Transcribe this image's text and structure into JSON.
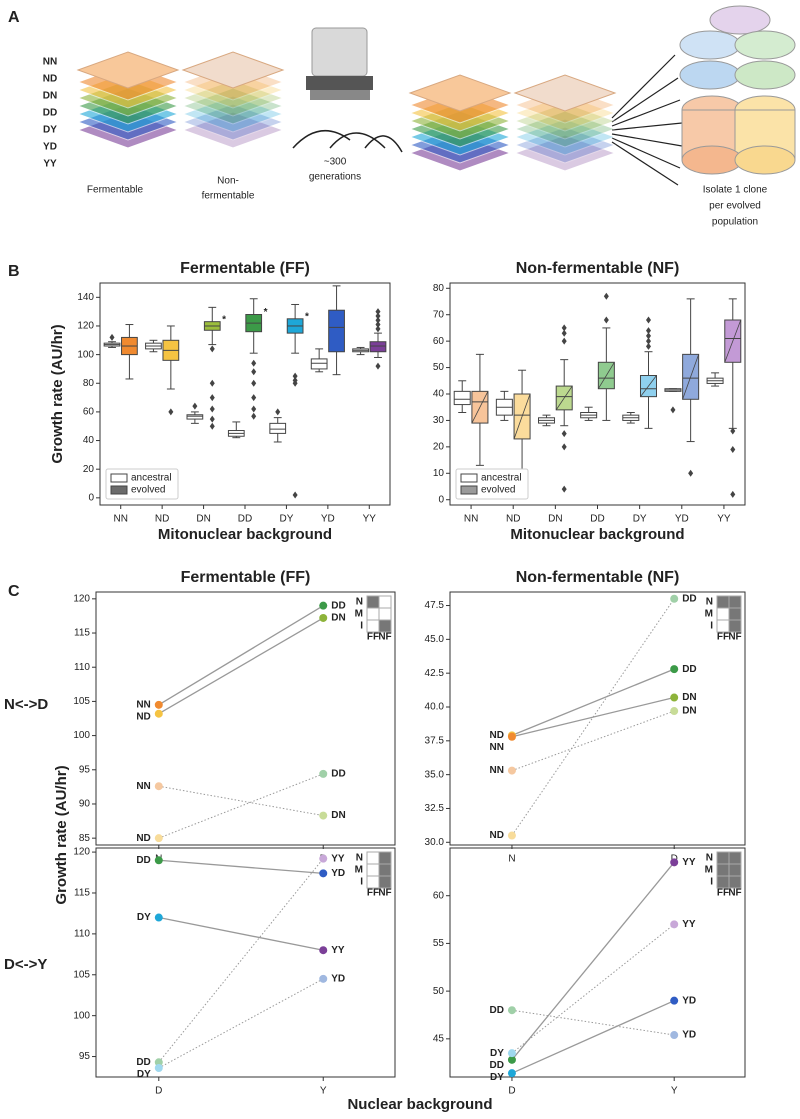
{
  "panel_labels": [
    "A",
    "B",
    "C"
  ],
  "panel_a": {
    "strains": [
      {
        "label": "NN",
        "color": "#f08a30"
      },
      {
        "label": "ND",
        "color": "#f5c342"
      },
      {
        "label": "DN",
        "color": "#8db33a"
      },
      {
        "label": "DD",
        "color": "#3c9a48"
      },
      {
        "label": "DY",
        "color": "#1ea7d8"
      },
      {
        "label": "YD",
        "color": "#2f5cc4"
      },
      {
        "label": "YY",
        "color": "#7b3f98"
      }
    ],
    "fermentable": "Fermentable",
    "non_fermentable": [
      "Non-",
      "fermentable"
    ],
    "generations": [
      "~300",
      "generations"
    ],
    "isolate": [
      "Isolate 1 clone",
      "per evolved",
      "population"
    ]
  },
  "panel_c": {
    "ylabel": "Growth rate (AU/hr)",
    "xlabel": "Nuclear background",
    "row_labels": [
      "N<->D",
      "D<->Y"
    ]
  },
  "chart_data": [
    {
      "type": "box",
      "title": "Fermentable (FF)",
      "xlabel": "Mitonuclear background",
      "ylabel": "Growth rate (AU/hr)",
      "categories": [
        "NN",
        "ND",
        "DN",
        "DD",
        "DY",
        "YD",
        "YY"
      ],
      "ylim": [
        -5,
        150
      ],
      "yticks": [
        0,
        20,
        40,
        60,
        80,
        100,
        120,
        140
      ],
      "hatch": false,
      "legend": "lower left",
      "significance": [
        null,
        null,
        "*",
        "*",
        "*",
        null,
        null
      ],
      "series": [
        {
          "name": "ancestral",
          "color": "#ffffff",
          "values": [
            {
              "whislo": 105,
              "q1": 106,
              "med": 107,
              "q3": 108,
              "whishi": 109,
              "fliers": [
                112
              ]
            },
            {
              "whislo": 102,
              "q1": 104,
              "med": 106,
              "q3": 108,
              "whishi": 110,
              "fliers": []
            },
            {
              "whislo": 52,
              "q1": 55,
              "med": 57,
              "q3": 58,
              "whishi": 60,
              "fliers": [
                64
              ]
            },
            {
              "whislo": 42,
              "q1": 43,
              "med": 45,
              "q3": 47,
              "whishi": 53,
              "fliers": []
            },
            {
              "whislo": 39,
              "q1": 45,
              "med": 48,
              "q3": 52,
              "whishi": 56,
              "fliers": [
                60
              ]
            },
            {
              "whislo": 88,
              "q1": 90,
              "med": 94,
              "q3": 97,
              "whishi": 104,
              "fliers": []
            },
            {
              "whislo": 100,
              "q1": 102,
              "med": 103,
              "q3": 104,
              "whishi": 105,
              "fliers": []
            }
          ]
        },
        {
          "name": "evolved",
          "color": "#6b6b6b",
          "colors": [
            "#f08a30",
            "#f5c342",
            "#9cbe3c",
            "#3c9a48",
            "#1ea7d8",
            "#2f5cc4",
            "#7b3f98"
          ],
          "values": [
            {
              "whislo": 83,
              "q1": 100,
              "med": 106,
              "q3": 112,
              "whishi": 121,
              "fliers": []
            },
            {
              "whislo": 76,
              "q1": 96,
              "med": 103,
              "q3": 110,
              "whishi": 120,
              "fliers": [
                60
              ]
            },
            {
              "whislo": 107,
              "q1": 117,
              "med": 120,
              "q3": 123,
              "whishi": 133,
              "fliers": [
                104,
                80,
                70,
                62,
                55,
                50
              ]
            },
            {
              "whislo": 101,
              "q1": 116,
              "med": 122,
              "q3": 128,
              "whishi": 139,
              "fliers": [
                94,
                88,
                80,
                70,
                62,
                57
              ]
            },
            {
              "whislo": 101,
              "q1": 115,
              "med": 120,
              "q3": 125,
              "whishi": 135,
              "fliers": [
                85,
                82,
                80,
                2
              ]
            },
            {
              "whislo": 86,
              "q1": 102,
              "med": 119,
              "q3": 131,
              "whishi": 148,
              "fliers": []
            },
            {
              "whislo": 98,
              "q1": 102,
              "med": 106,
              "q3": 109,
              "whishi": 115,
              "fliers": [
                118,
                121,
                124,
                127,
                130,
                92
              ]
            }
          ]
        }
      ]
    },
    {
      "type": "box",
      "title": "Non-fermentable (NF)",
      "xlabel": "Mitonuclear background",
      "categories": [
        "NN",
        "ND",
        "DN",
        "DD",
        "DY",
        "YD",
        "YY"
      ],
      "ylim": [
        -2,
        82
      ],
      "yticks": [
        0,
        10,
        20,
        30,
        40,
        50,
        60,
        70,
        80
      ],
      "hatch": true,
      "legend": "lower left",
      "series": [
        {
          "name": "ancestral",
          "color": "#ffffff",
          "values": [
            {
              "whislo": 33,
              "q1": 36,
              "med": 38,
              "q3": 41,
              "whishi": 45,
              "fliers": []
            },
            {
              "whislo": 30,
              "q1": 32,
              "med": 35,
              "q3": 38,
              "whishi": 41,
              "fliers": []
            },
            {
              "whislo": 28,
              "q1": 29,
              "med": 30,
              "q3": 31,
              "whishi": 32,
              "fliers": []
            },
            {
              "whislo": 30,
              "q1": 31,
              "med": 32,
              "q3": 33,
              "whishi": 35,
              "fliers": []
            },
            {
              "whislo": 29,
              "q1": 30,
              "med": 31,
              "q3": 32,
              "whishi": 33,
              "fliers": []
            },
            {
              "whislo": 41,
              "q1": 41,
              "med": 41.5,
              "q3": 42,
              "whishi": 42,
              "fliers": [
                34
              ]
            },
            {
              "whislo": 43,
              "q1": 44,
              "med": 45,
              "q3": 46,
              "whishi": 48,
              "fliers": []
            }
          ]
        },
        {
          "name": "evolved",
          "color": "#9a9a9a",
          "colors": [
            "#f7c49a",
            "#fbdc9c",
            "#bcd98f",
            "#8fcb8f",
            "#8fd0ee",
            "#8fa9dc",
            "#c39ad6"
          ],
          "values": [
            {
              "whislo": 13,
              "q1": 29,
              "med": 37,
              "q3": 41,
              "whishi": 55,
              "fliers": [
                9
              ]
            },
            {
              "whislo": 1,
              "q1": 23,
              "med": 32,
              "q3": 40,
              "whishi": 49,
              "fliers": []
            },
            {
              "whislo": 28,
              "q1": 34,
              "med": 39,
              "q3": 43,
              "whishi": 53,
              "fliers": [
                65,
                63,
                60,
                25,
                20,
                4
              ]
            },
            {
              "whislo": 30,
              "q1": 42,
              "med": 46,
              "q3": 52,
              "whishi": 65,
              "fliers": [
                77,
                68
              ]
            },
            {
              "whislo": 27,
              "q1": 39,
              "med": 42,
              "q3": 47,
              "whishi": 56,
              "fliers": [
                68,
                64,
                62,
                60,
                58
              ]
            },
            {
              "whislo": 22,
              "q1": 38,
              "med": 46,
              "q3": 55,
              "whishi": 76,
              "fliers": [
                10
              ]
            },
            {
              "whislo": 27,
              "q1": 52,
              "med": 61,
              "q3": 68,
              "whishi": 76,
              "fliers": [
                26,
                19,
                2
              ]
            }
          ]
        }
      ]
    },
    {
      "type": "line",
      "title": "Fermentable (FF)",
      "categories": [
        "N",
        "D"
      ],
      "ylim": [
        84,
        121
      ],
      "yticks": [
        85,
        90,
        95,
        100,
        105,
        110,
        115,
        120
      ],
      "inset": {
        "rows": [
          "N",
          "M",
          "I"
        ],
        "cols": [
          "FF",
          "NF"
        ],
        "cells": [
          [
            1,
            0
          ],
          [
            0,
            0
          ],
          [
            0,
            1
          ]
        ]
      },
      "series": [
        {
          "style": "solid",
          "labels": [
            "NN",
            "DD"
          ],
          "colors": [
            "#f08a30",
            "#3c9a48"
          ],
          "values": [
            104.5,
            119
          ]
        },
        {
          "style": "solid",
          "labels": [
            "ND",
            "DN"
          ],
          "colors": [
            "#f5c342",
            "#8db33a"
          ],
          "values": [
            103.2,
            117.2
          ]
        },
        {
          "style": "dotted",
          "labels": [
            "NN",
            "DN"
          ],
          "colors": [
            "#f5c8a0",
            "#c8dc98"
          ],
          "values": [
            92.6,
            88.3
          ]
        },
        {
          "style": "dotted",
          "labels": [
            "ND",
            "DD"
          ],
          "colors": [
            "#f8dc9a",
            "#a0d0a8"
          ],
          "values": [
            85,
            94.4
          ]
        }
      ]
    },
    {
      "type": "line",
      "title": "Non-fermentable (NF)",
      "categories": [
        "N",
        "D"
      ],
      "ylim": [
        29.8,
        48.5
      ],
      "yticks": [
        {
          "value": 30,
          "label": "30.0"
        },
        32.5,
        {
          "value": 35,
          "label": "35.0"
        },
        37.5,
        {
          "value": 40,
          "label": "40.0"
        },
        42.5,
        {
          "value": 45,
          "label": "45.0"
        },
        47.5
      ],
      "inset": {
        "rows": [
          "N",
          "M",
          "I"
        ],
        "cols": [
          "FF",
          "NF"
        ],
        "cells": [
          [
            1,
            1
          ],
          [
            0,
            1
          ],
          [
            0,
            1
          ]
        ]
      },
      "series": [
        {
          "style": "solid",
          "labels": [
            "ND",
            "DD"
          ],
          "colors": [
            "#f5c342",
            "#3c9a48"
          ],
          "values": [
            37.9,
            42.8
          ]
        },
        {
          "style": "solid",
          "labels": [
            "NN",
            "DN"
          ],
          "colors": [
            "#f08a30",
            "#8db33a"
          ],
          "values": [
            37.8,
            40.7
          ]
        },
        {
          "style": "dotted",
          "labels": [
            "NN",
            "DN"
          ],
          "colors": [
            "#f5c8a0",
            "#c8dc98"
          ],
          "values": [
            35.3,
            39.7
          ]
        },
        {
          "style": "dotted",
          "labels": [
            "ND",
            "DD"
          ],
          "colors": [
            "#f8dc9a",
            "#a0d0a8"
          ],
          "values": [
            30.5,
            48
          ]
        }
      ]
    },
    {
      "type": "line",
      "categories": [
        "D",
        "Y"
      ],
      "ylim": [
        92.5,
        120.5
      ],
      "yticks": [
        95,
        100,
        105,
        110,
        115,
        120
      ],
      "inset": {
        "rows": [
          "N",
          "M",
          "I"
        ],
        "cols": [
          "FF",
          "NF"
        ],
        "cells": [
          [
            0,
            1
          ],
          [
            0,
            1
          ],
          [
            0,
            1
          ]
        ]
      },
      "series": [
        {
          "style": "solid",
          "labels": [
            "DD",
            "YD"
          ],
          "colors": [
            "#3c9a48",
            "#2f5cc4"
          ],
          "values": [
            119,
            117.4
          ]
        },
        {
          "style": "solid",
          "labels": [
            "DY",
            "YY"
          ],
          "colors": [
            "#1ea7d8",
            "#7b3f98"
          ],
          "values": [
            112,
            108
          ]
        },
        {
          "style": "dotted",
          "labels": [
            "DD",
            "YY"
          ],
          "colors": [
            "#a0d0a8",
            "#c8a8d8"
          ],
          "values": [
            94.3,
            119.2
          ]
        },
        {
          "style": "dotted",
          "labels": [
            "DY",
            "YD"
          ],
          "colors": [
            "#9fd8ee",
            "#a0b8e0"
          ],
          "values": [
            93.6,
            104.5
          ]
        }
      ]
    },
    {
      "type": "line",
      "categories": [
        "D",
        "Y"
      ],
      "ylim": [
        41,
        65
      ],
      "yticks": [
        45,
        50,
        55,
        60
      ],
      "inset": {
        "rows": [
          "N",
          "M",
          "I"
        ],
        "cols": [
          "FF",
          "NF"
        ],
        "cells": [
          [
            1,
            1
          ],
          [
            1,
            1
          ],
          [
            1,
            1
          ]
        ]
      },
      "series": [
        {
          "style": "solid",
          "labels": [
            "DD",
            "YY"
          ],
          "colors": [
            "#3c9a48",
            "#7b3f98"
          ],
          "values": [
            42.8,
            63.5
          ]
        },
        {
          "style": "solid",
          "labels": [
            "DY",
            "YD"
          ],
          "colors": [
            "#1ea7d8",
            "#2f5cc4"
          ],
          "values": [
            41.4,
            49
          ]
        },
        {
          "style": "dotted",
          "labels": [
            "DD",
            "YD"
          ],
          "colors": [
            "#a0d0a8",
            "#a0b8e0"
          ],
          "values": [
            48,
            45.4
          ]
        },
        {
          "style": "dotted",
          "labels": [
            "DY",
            "YY"
          ],
          "colors": [
            "#9fd8ee",
            "#c8a8d8"
          ],
          "values": [
            43.5,
            57
          ]
        }
      ]
    }
  ]
}
